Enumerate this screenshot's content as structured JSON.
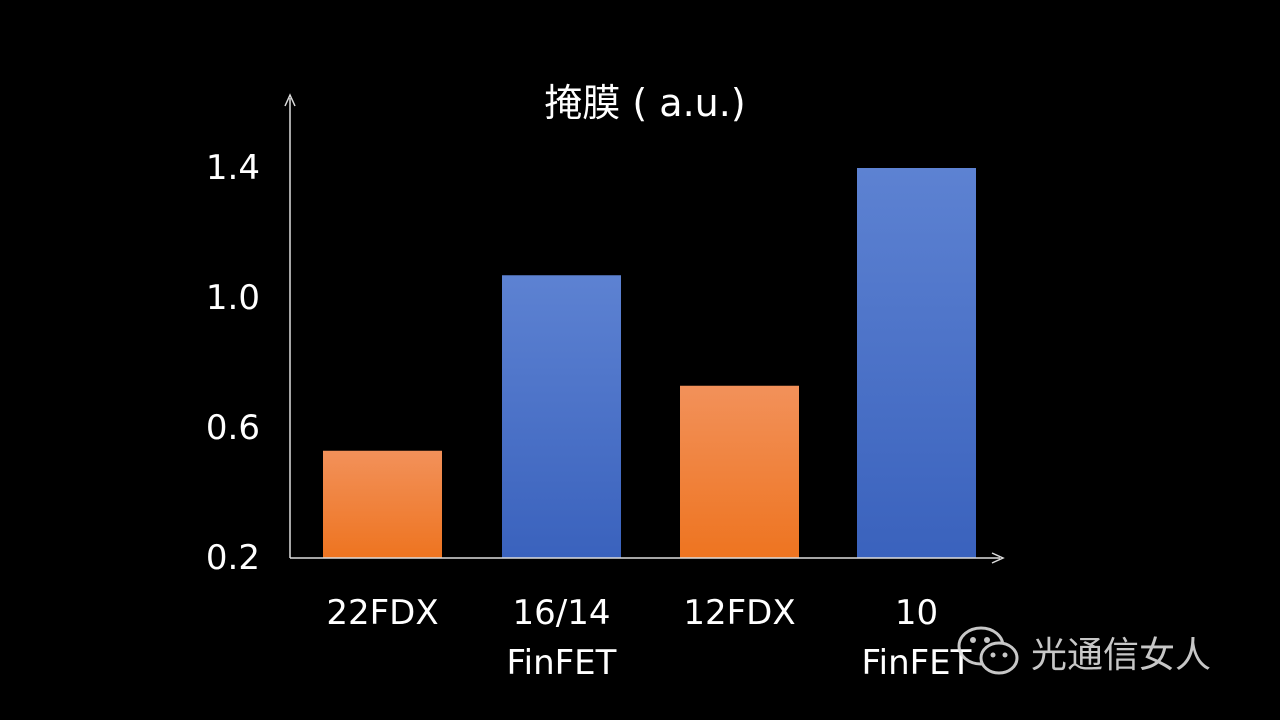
{
  "chart_data": {
    "type": "bar",
    "title": "掩膜 ( a.u.)",
    "xlabel": "",
    "ylabel": "",
    "categories": [
      "22FDX",
      "16/14\nFinFET",
      "12FDX",
      "10\nFinFET"
    ],
    "values": [
      0.53,
      1.07,
      0.73,
      1.4
    ],
    "bar_colors": [
      "#ef8034",
      "#4a72c8",
      "#ef8034",
      "#4a72c8"
    ],
    "yticks": [
      0.2,
      0.6,
      1.0,
      1.4
    ],
    "ytick_labels": [
      "0.2",
      "0.6",
      "1.0",
      "1.4"
    ],
    "ylim": [
      0.2,
      1.55
    ],
    "grid": false,
    "legend": "none"
  },
  "watermark": {
    "text": "光通信女人",
    "icon": "wechat-icon"
  }
}
